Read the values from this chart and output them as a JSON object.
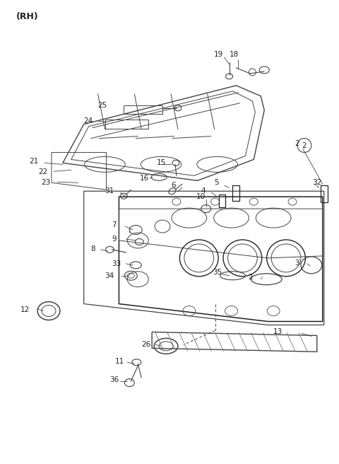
{
  "bg_color": "#ffffff",
  "fig_width": 4.8,
  "fig_height": 6.56,
  "dpi": 100,
  "gray": "#555555",
  "dark": "#222222",
  "line_color": "#444444"
}
